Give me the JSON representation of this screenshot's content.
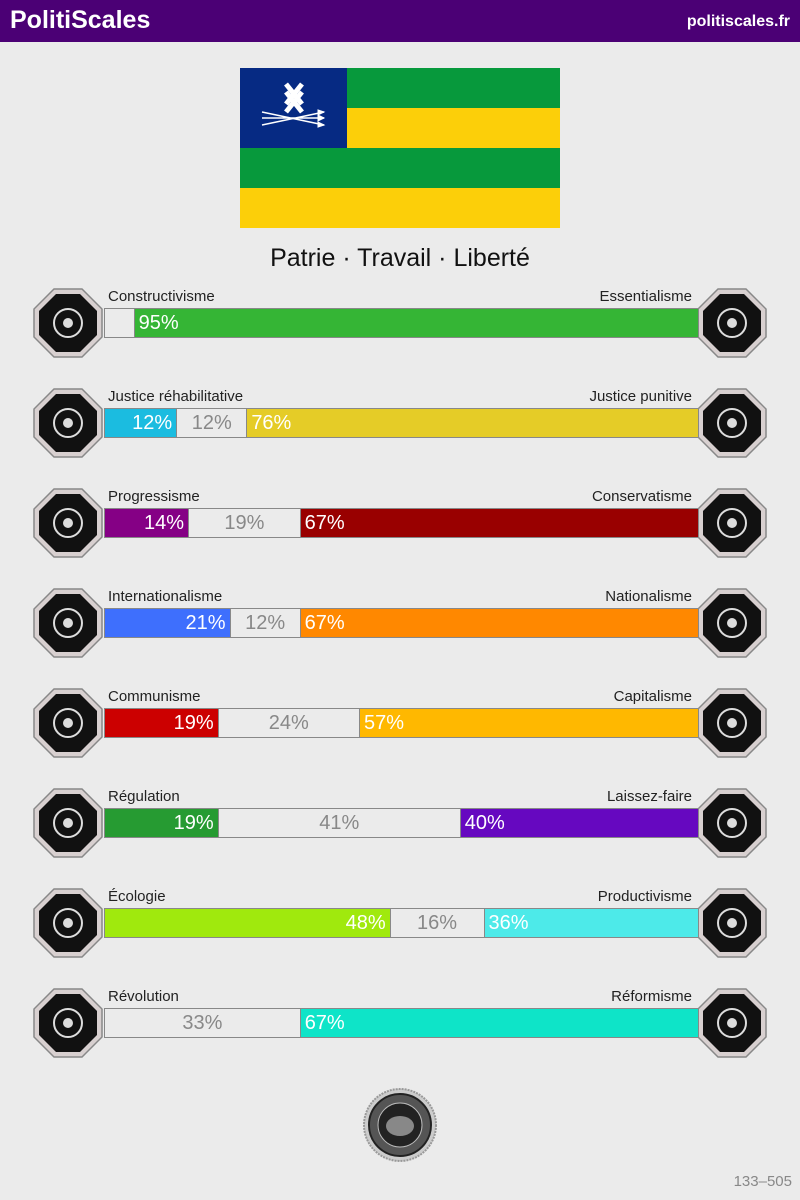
{
  "header": {
    "brand": "PolitiScales",
    "site": "politiscales.fr",
    "color": "#4b0075"
  },
  "flag": {
    "canton": "#062a83",
    "green": "#07993c",
    "yellow": "#fccf09",
    "emblem": "othala-rune-with-arrows"
  },
  "motto": "Patrie · Travail · Liberté",
  "axes": [
    {
      "left_label": "Constructivisme",
      "right_label": "Essentialisme",
      "left_icon": "eye-icon",
      "right_icon": "flower-icon",
      "left": 0,
      "neutral": 5,
      "right": 95,
      "left_text": "",
      "neutral_text": "",
      "right_text": "95%",
      "left_color": "#1bbce0",
      "right_color": "#35b535"
    },
    {
      "left_label": "Justice réhabilitative",
      "right_label": "Justice punitive",
      "left_icon": "handshake-icon",
      "right_icon": "prison-bars-icon",
      "left": 12,
      "neutral": 12,
      "right": 76,
      "left_text": "12%",
      "neutral_text": "12%",
      "right_text": "76%",
      "left_color": "#1bbce0",
      "right_color": "#e5cc27"
    },
    {
      "left_label": "Progressisme",
      "right_label": "Conservatisme",
      "left_icon": "torch-icon",
      "right_icon": "quill-icon",
      "left": 14,
      "neutral": 19,
      "right": 67,
      "left_text": "14%",
      "neutral_text": "19%",
      "right_text": "67%",
      "left_color": "#850085",
      "right_color": "#990000"
    },
    {
      "left_label": "Internationalisme",
      "right_label": "Nationalisme",
      "left_icon": "globe-icon",
      "right_icon": "flag-icon",
      "left": 21,
      "neutral": 12,
      "right": 67,
      "left_text": "21%",
      "neutral_text": "12%",
      "right_text": "67%",
      "left_color": "#3e6ffd",
      "right_color": "#ff8800"
    },
    {
      "left_label": "Communisme",
      "right_label": "Capitalisme",
      "left_icon": "hammer-sickle-icon",
      "right_icon": "money-bag-icon",
      "left": 19,
      "neutral": 24,
      "right": 57,
      "left_text": "19%",
      "neutral_text": "24%",
      "right_text": "57%",
      "left_color": "#cc0000",
      "right_color": "#ffb800"
    },
    {
      "left_label": "Régulation",
      "right_label": "Laissez-faire",
      "left_icon": "ruler-icon",
      "right_icon": "butterfly-icon",
      "left": 19,
      "neutral": 41,
      "right": 40,
      "left_text": "19%",
      "neutral_text": "41%",
      "right_text": "40%",
      "left_color": "#269b32",
      "right_color": "#6608c0"
    },
    {
      "left_label": "Écologie",
      "right_label": "Productivisme",
      "left_icon": "sprout-icon",
      "right_icon": "gear-icon",
      "left": 48,
      "neutral": 16,
      "right": 36,
      "left_text": "48%",
      "neutral_text": "16%",
      "right_text": "36%",
      "left_color": "#a0e90d",
      "right_color": "#4deae9"
    },
    {
      "left_label": "Révolution",
      "right_label": "Réformisme",
      "left_icon": "fist-icon",
      "right_icon": "parliament-icon",
      "left": 0,
      "neutral": 33,
      "right": 67,
      "left_text": "",
      "neutral_text": "33%",
      "right_text": "67%",
      "left_color": "#000000",
      "right_color": "#0ee4c8"
    }
  ],
  "footer": {
    "seal_icon": "brain-seal-icon",
    "code": "133–505"
  }
}
